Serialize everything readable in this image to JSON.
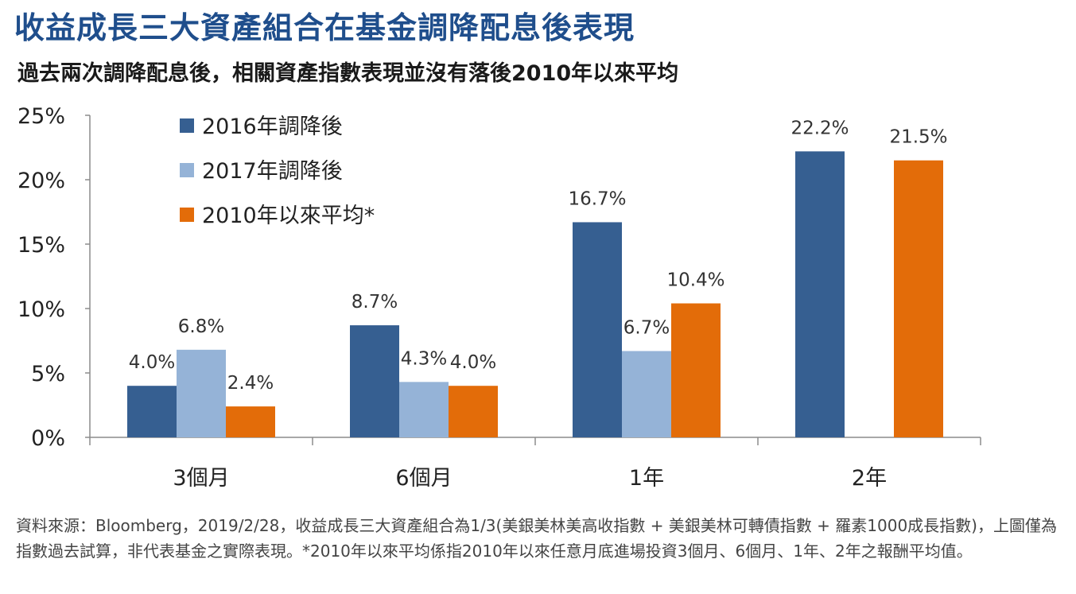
{
  "header": {
    "title": "收益成長三大資產組合在基金調降配息後表現",
    "subtitle": "過去兩次調降配息後，相關資產指數表現並沒有落後2010年以來平均"
  },
  "chart_data": {
    "type": "bar",
    "categories": [
      "3個月",
      "6個月",
      "1年",
      "2年"
    ],
    "series": [
      {
        "name": "2016年調降後",
        "color": "#365f91",
        "values": [
          4.0,
          8.7,
          16.7,
          22.2
        ],
        "labels": [
          "4.0%",
          "8.7%",
          "16.7%",
          "22.2%"
        ]
      },
      {
        "name": "2017年調降後",
        "color": "#95b3d7",
        "values": [
          6.8,
          4.3,
          6.7,
          null
        ],
        "labels": [
          "6.8%",
          "4.3%",
          "6.7%",
          ""
        ]
      },
      {
        "name": "2010年以來平均*",
        "color": "#e36c09",
        "values": [
          2.4,
          4.0,
          10.4,
          21.5
        ],
        "labels": [
          "2.4%",
          "4.0%",
          "10.4%",
          "21.5%"
        ]
      }
    ],
    "yticks": [
      "0%",
      "5%",
      "10%",
      "15%",
      "20%",
      "25%"
    ],
    "ylim": [
      0,
      25
    ],
    "legend_position": "top-left",
    "grid": false
  },
  "footnote": "資料來源：Bloomberg，2019/2/28，收益成長三大資產組合為1/3(美銀美林美高收指數 + 美銀美林可轉債指數 + 羅素1000成長指數)，上圖僅為指數過去試算，非代表基金之實際表現。*2010年以來平均係指2010年以來任意月底進場投資3個月、6個月、1年、2年之報酬平均值。"
}
